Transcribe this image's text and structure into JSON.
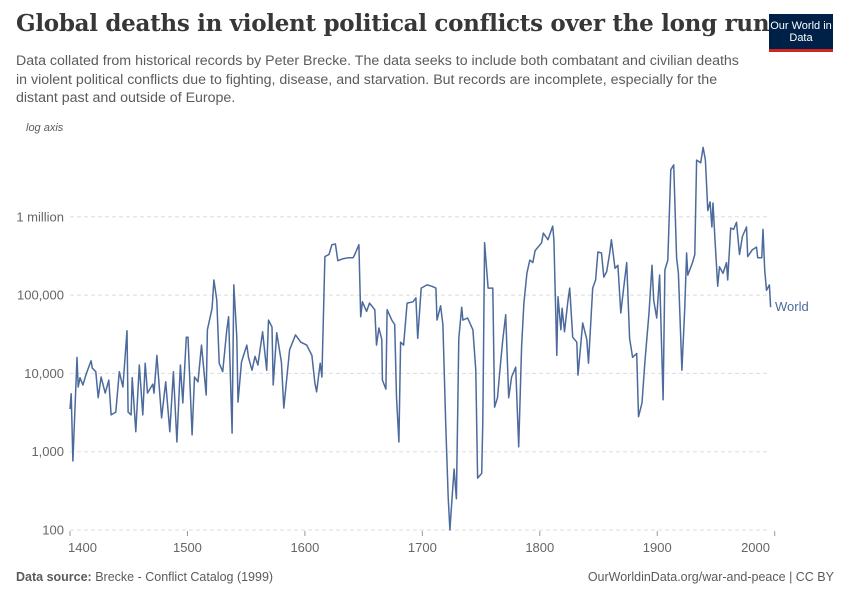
{
  "header": {
    "title": "Global deaths in violent political conflicts over the long run",
    "subtitle": "Data collated from historical records by Peter Brecke. The data seeks to include both combatant and civilian deaths in violent political conflicts due to fighting, disease, and starvation. But records are incomplete, especially for the distant past and outside of Europe.",
    "logo_text": "Our World in Data"
  },
  "footer": {
    "source_label": "Data source:",
    "source": "Brecke - Conflict Catalog (1999)",
    "url": "OurWorldinData.org/war-and-peace | CC BY"
  },
  "colors": {
    "line": "#4c6a9c",
    "logo_bg": "#002147",
    "logo_accent": "#ce261e",
    "grid": "#dddddd"
  },
  "chart_data": {
    "type": "line",
    "title": "Global deaths in violent political conflicts over the long run",
    "yscale": "log",
    "ylabel_note": "log axis",
    "xlim": [
      1400,
      2000
    ],
    "ylim": [
      100,
      8000000
    ],
    "grid": "horizontal dashed",
    "x_ticks": [
      "1400",
      "1500",
      "1600",
      "1700",
      "1800",
      "1900",
      "2000"
    ],
    "y_ticks": [
      {
        "value": 100,
        "label": "100"
      },
      {
        "value": 1000,
        "label": "1,000"
      },
      {
        "value": 10000,
        "label": "10,000"
      },
      {
        "value": 100000,
        "label": "100,000"
      },
      {
        "value": 1000000,
        "label": "1 million"
      }
    ],
    "series": [
      {
        "name": "World",
        "points": [
          [
            1400,
            3500
          ],
          [
            1401,
            5500
          ],
          [
            1402.5,
            760
          ],
          [
            1406,
            16000
          ],
          [
            1407,
            6700
          ],
          [
            1408.5,
            8800
          ],
          [
            1411,
            7100
          ],
          [
            1414,
            10000
          ],
          [
            1418,
            14500
          ],
          [
            1419,
            11700
          ],
          [
            1422,
            10500
          ],
          [
            1424,
            4900
          ],
          [
            1426.5,
            9000
          ],
          [
            1430,
            5600
          ],
          [
            1433,
            8200
          ],
          [
            1435,
            2950
          ],
          [
            1439,
            3200
          ],
          [
            1442,
            10500
          ],
          [
            1445,
            6700
          ],
          [
            1448.5,
            35000
          ],
          [
            1449.5,
            3200
          ],
          [
            1452,
            2950
          ],
          [
            1453,
            8800
          ],
          [
            1456,
            1800
          ],
          [
            1459,
            12800
          ],
          [
            1462,
            2950
          ],
          [
            1464,
            13500
          ],
          [
            1466,
            5600
          ],
          [
            1470.5,
            7300
          ],
          [
            1471.5,
            5600
          ],
          [
            1474,
            17000
          ],
          [
            1478,
            2700
          ],
          [
            1481.5,
            7800
          ],
          [
            1485,
            1800
          ],
          [
            1488,
            10500
          ],
          [
            1491,
            1330
          ],
          [
            1494,
            12800
          ],
          [
            1496,
            4200
          ],
          [
            1499,
            29000
          ],
          [
            1500.5,
            29000
          ],
          [
            1504,
            1640
          ],
          [
            1506,
            9000
          ],
          [
            1509,
            7800
          ],
          [
            1512,
            23000
          ],
          [
            1516,
            5300
          ],
          [
            1517,
            36000
          ],
          [
            1521,
            68000
          ],
          [
            1522.5,
            156000
          ],
          [
            1525,
            86000
          ],
          [
            1527,
            13500
          ],
          [
            1530,
            10500
          ],
          [
            1533.5,
            36000
          ],
          [
            1535,
            53000
          ],
          [
            1538,
            1730
          ],
          [
            1539.5,
            135000
          ],
          [
            1542,
            29000
          ],
          [
            1543,
            4300
          ],
          [
            1546,
            14000
          ],
          [
            1550.5,
            23000
          ],
          [
            1552,
            16000
          ],
          [
            1555,
            11000
          ],
          [
            1557.5,
            16500
          ],
          [
            1560,
            12800
          ],
          [
            1564,
            34000
          ],
          [
            1567.5,
            11000
          ],
          [
            1569,
            48000
          ],
          [
            1572,
            39000
          ],
          [
            1573,
            7100
          ],
          [
            1576,
            33000
          ],
          [
            1580,
            14000
          ],
          [
            1582,
            3600
          ],
          [
            1587,
            20000
          ],
          [
            1592,
            31000
          ],
          [
            1596.5,
            25000
          ],
          [
            1601.5,
            23000
          ],
          [
            1606,
            17000
          ],
          [
            1608.5,
            7500
          ],
          [
            1610,
            5800
          ],
          [
            1613,
            13500
          ],
          [
            1614.5,
            9000
          ],
          [
            1617,
            310000
          ],
          [
            1620.5,
            330000
          ],
          [
            1623,
            440000
          ],
          [
            1626,
            450000
          ],
          [
            1628,
            275000
          ],
          [
            1632,
            290000
          ],
          [
            1637,
            300000
          ],
          [
            1641,
            300000
          ],
          [
            1642.5,
            330000
          ],
          [
            1646,
            440000
          ],
          [
            1647.5,
            53000
          ],
          [
            1649,
            82000
          ],
          [
            1652.5,
            62000
          ],
          [
            1655,
            79000
          ],
          [
            1659.5,
            65000
          ],
          [
            1661,
            23000
          ],
          [
            1663,
            38000
          ],
          [
            1665.5,
            27000
          ],
          [
            1666,
            8200
          ],
          [
            1669,
            6300
          ],
          [
            1670,
            65000
          ],
          [
            1674,
            48000
          ],
          [
            1676.5,
            42000
          ],
          [
            1678,
            5000
          ],
          [
            1680,
            1330
          ],
          [
            1681.5,
            25000
          ],
          [
            1684,
            23000
          ],
          [
            1687,
            79000
          ],
          [
            1692,
            82000
          ],
          [
            1694.5,
            92000
          ],
          [
            1696,
            28000
          ],
          [
            1699,
            123000
          ],
          [
            1704,
            135000
          ],
          [
            1708,
            130000
          ],
          [
            1711.5,
            123000
          ],
          [
            1712.5,
            48000
          ],
          [
            1715.5,
            73000
          ],
          [
            1717.5,
            42000
          ],
          [
            1720,
            2100
          ],
          [
            1722,
            260
          ],
          [
            1723.5,
            100
          ],
          [
            1725,
            220
          ],
          [
            1727,
            600
          ],
          [
            1729,
            250
          ],
          [
            1731,
            28000
          ],
          [
            1733.5,
            70000
          ],
          [
            1734.5,
            48000
          ],
          [
            1738.5,
            51000
          ],
          [
            1743,
            36000
          ],
          [
            1745.5,
            11000
          ],
          [
            1747,
            460
          ],
          [
            1750.5,
            530
          ],
          [
            1751.5,
            2400
          ],
          [
            1753,
            465000
          ],
          [
            1756,
            123000
          ],
          [
            1760,
            123000
          ],
          [
            1761.5,
            3700
          ],
          [
            1764,
            4900
          ],
          [
            1766,
            11000
          ],
          [
            1768.5,
            27000
          ],
          [
            1771,
            56000
          ],
          [
            1773.5,
            4900
          ],
          [
            1776,
            9000
          ],
          [
            1779.5,
            12000
          ],
          [
            1782,
            1150
          ],
          [
            1784.5,
            22000
          ],
          [
            1786.5,
            79000
          ],
          [
            1789,
            190000
          ],
          [
            1791.5,
            280000
          ],
          [
            1794,
            260000
          ],
          [
            1796,
            370000
          ],
          [
            1801.5,
            465000
          ],
          [
            1803,
            620000
          ],
          [
            1807,
            510000
          ],
          [
            1811,
            760000
          ],
          [
            1812,
            510000
          ],
          [
            1814.5,
            17000
          ],
          [
            1815.5,
            95000
          ],
          [
            1818,
            36000
          ],
          [
            1819,
            68000
          ],
          [
            1821,
            34000
          ],
          [
            1824,
            86000
          ],
          [
            1825.5,
            123000
          ],
          [
            1828,
            29000
          ],
          [
            1831.5,
            25000
          ],
          [
            1832.5,
            9500
          ],
          [
            1836.5,
            44000
          ],
          [
            1840,
            27000
          ],
          [
            1841.5,
            13500
          ],
          [
            1845,
            123000
          ],
          [
            1847.5,
            156000
          ],
          [
            1849.5,
            355000
          ],
          [
            1852.5,
            345000
          ],
          [
            1854.5,
            170000
          ],
          [
            1857,
            200000
          ],
          [
            1859.5,
            345000
          ],
          [
            1861,
            510000
          ],
          [
            1864,
            220000
          ],
          [
            1866.5,
            240000
          ],
          [
            1869,
            59000
          ],
          [
            1871,
            110000
          ],
          [
            1874,
            260000
          ],
          [
            1876.5,
            28000
          ],
          [
            1879,
            16000
          ],
          [
            1882.5,
            18000
          ],
          [
            1884,
            2800
          ],
          [
            1887,
            4200
          ],
          [
            1889.5,
            14000
          ],
          [
            1893,
            59000
          ],
          [
            1895.5,
            240000
          ],
          [
            1897,
            86000
          ],
          [
            1899.5,
            51000
          ],
          [
            1902,
            180000
          ],
          [
            1905,
            4600
          ],
          [
            1906.5,
            210000
          ],
          [
            1909,
            280000
          ],
          [
            1911.5,
            4000000
          ],
          [
            1914,
            4600000
          ],
          [
            1916.5,
            300000
          ],
          [
            1918,
            190000
          ],
          [
            1921,
            11000
          ],
          [
            1923.5,
            70000
          ],
          [
            1925,
            345000
          ],
          [
            1926,
            180000
          ],
          [
            1930,
            260000
          ],
          [
            1932,
            330000
          ],
          [
            1933.5,
            5300000
          ],
          [
            1937,
            4900000
          ],
          [
            1939,
            7700000
          ],
          [
            1941,
            5300000
          ],
          [
            1943,
            1200000
          ],
          [
            1945,
            1550000
          ],
          [
            1946.5,
            740000
          ],
          [
            1947.5,
            1500000
          ],
          [
            1949,
            560000
          ],
          [
            1951.5,
            130000
          ],
          [
            1953,
            230000
          ],
          [
            1956,
            190000
          ],
          [
            1959,
            260000
          ],
          [
            1960,
            156000
          ],
          [
            1962.5,
            720000
          ],
          [
            1965,
            690000
          ],
          [
            1967.5,
            850000
          ],
          [
            1970,
            330000
          ],
          [
            1972.5,
            560000
          ],
          [
            1976,
            740000
          ],
          [
            1977,
            310000
          ],
          [
            1981,
            380000
          ],
          [
            1984.5,
            410000
          ],
          [
            1985.5,
            300000
          ],
          [
            1989,
            300000
          ],
          [
            1990,
            690000
          ],
          [
            1991.5,
            210000
          ],
          [
            1993,
            115000
          ],
          [
            1995.5,
            135000
          ],
          [
            1996.5,
            70000
          ]
        ]
      }
    ]
  }
}
